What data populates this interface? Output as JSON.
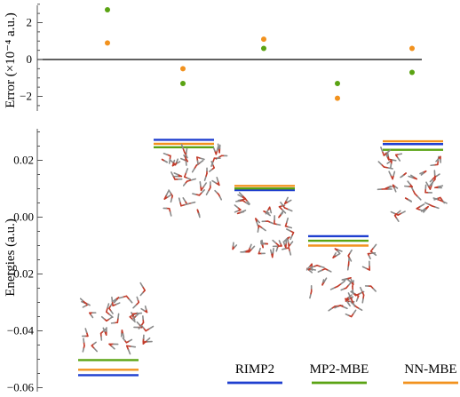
{
  "colors": {
    "RIMP2": "#1f3fcf",
    "MP2-MBE": "#5aa313",
    "NN-MBE": "#f2921e",
    "oxygen": "#c23b2a",
    "hydrogen": "#8a8a8a",
    "axis": "#555555"
  },
  "chart_data": [
    {
      "type": "scatter",
      "ylabel": "Error (×10⁻⁴ a.u.)",
      "ylim": [
        -2.8,
        3.2
      ],
      "yticks": [
        -2,
        0,
        2
      ],
      "ytick_labels": [
        "−2",
        "0",
        "2"
      ],
      "series": [
        {
          "name": "MP2-MBE",
          "color_key": "MP2-MBE",
          "x": [
            1,
            2,
            3,
            4,
            5
          ],
          "values": [
            2.7,
            -1.3,
            0.6,
            -1.3,
            -0.7
          ]
        },
        {
          "name": "NN-MBE",
          "color_key": "NN-MBE",
          "x": [
            1,
            2,
            3,
            4,
            5
          ],
          "values": [
            0.9,
            -0.5,
            1.1,
            -2.1,
            0.6
          ]
        }
      ]
    },
    {
      "type": "energy-levels",
      "ylabel": "Energies (a.u.)",
      "ylim": [
        -0.062,
        0.032
      ],
      "yticks": [
        -0.06,
        -0.04,
        -0.02,
        0.0,
        0.02
      ],
      "ytick_labels": [
        "−0.06",
        "−0.04",
        "−0.02",
        "0.00",
        "0.02"
      ],
      "structures": [
        1,
        2,
        3,
        4,
        5
      ],
      "series": [
        {
          "name": "RIMP2",
          "color_key": "RIMP2",
          "values": [
            -0.0556,
            0.0272,
            0.0095,
            -0.0067,
            0.0257
          ]
        },
        {
          "name": "MP2-MBE",
          "color_key": "MP2-MBE",
          "values": [
            -0.0503,
            0.0246,
            0.0101,
            -0.0083,
            0.0237
          ]
        },
        {
          "name": "NN-MBE",
          "color_key": "NN-MBE",
          "values": [
            -0.0537,
            0.0258,
            0.011,
            -0.01,
            0.0267
          ]
        }
      ],
      "legend": [
        "RIMP2",
        "MP2-MBE",
        "NN-MBE"
      ]
    }
  ]
}
